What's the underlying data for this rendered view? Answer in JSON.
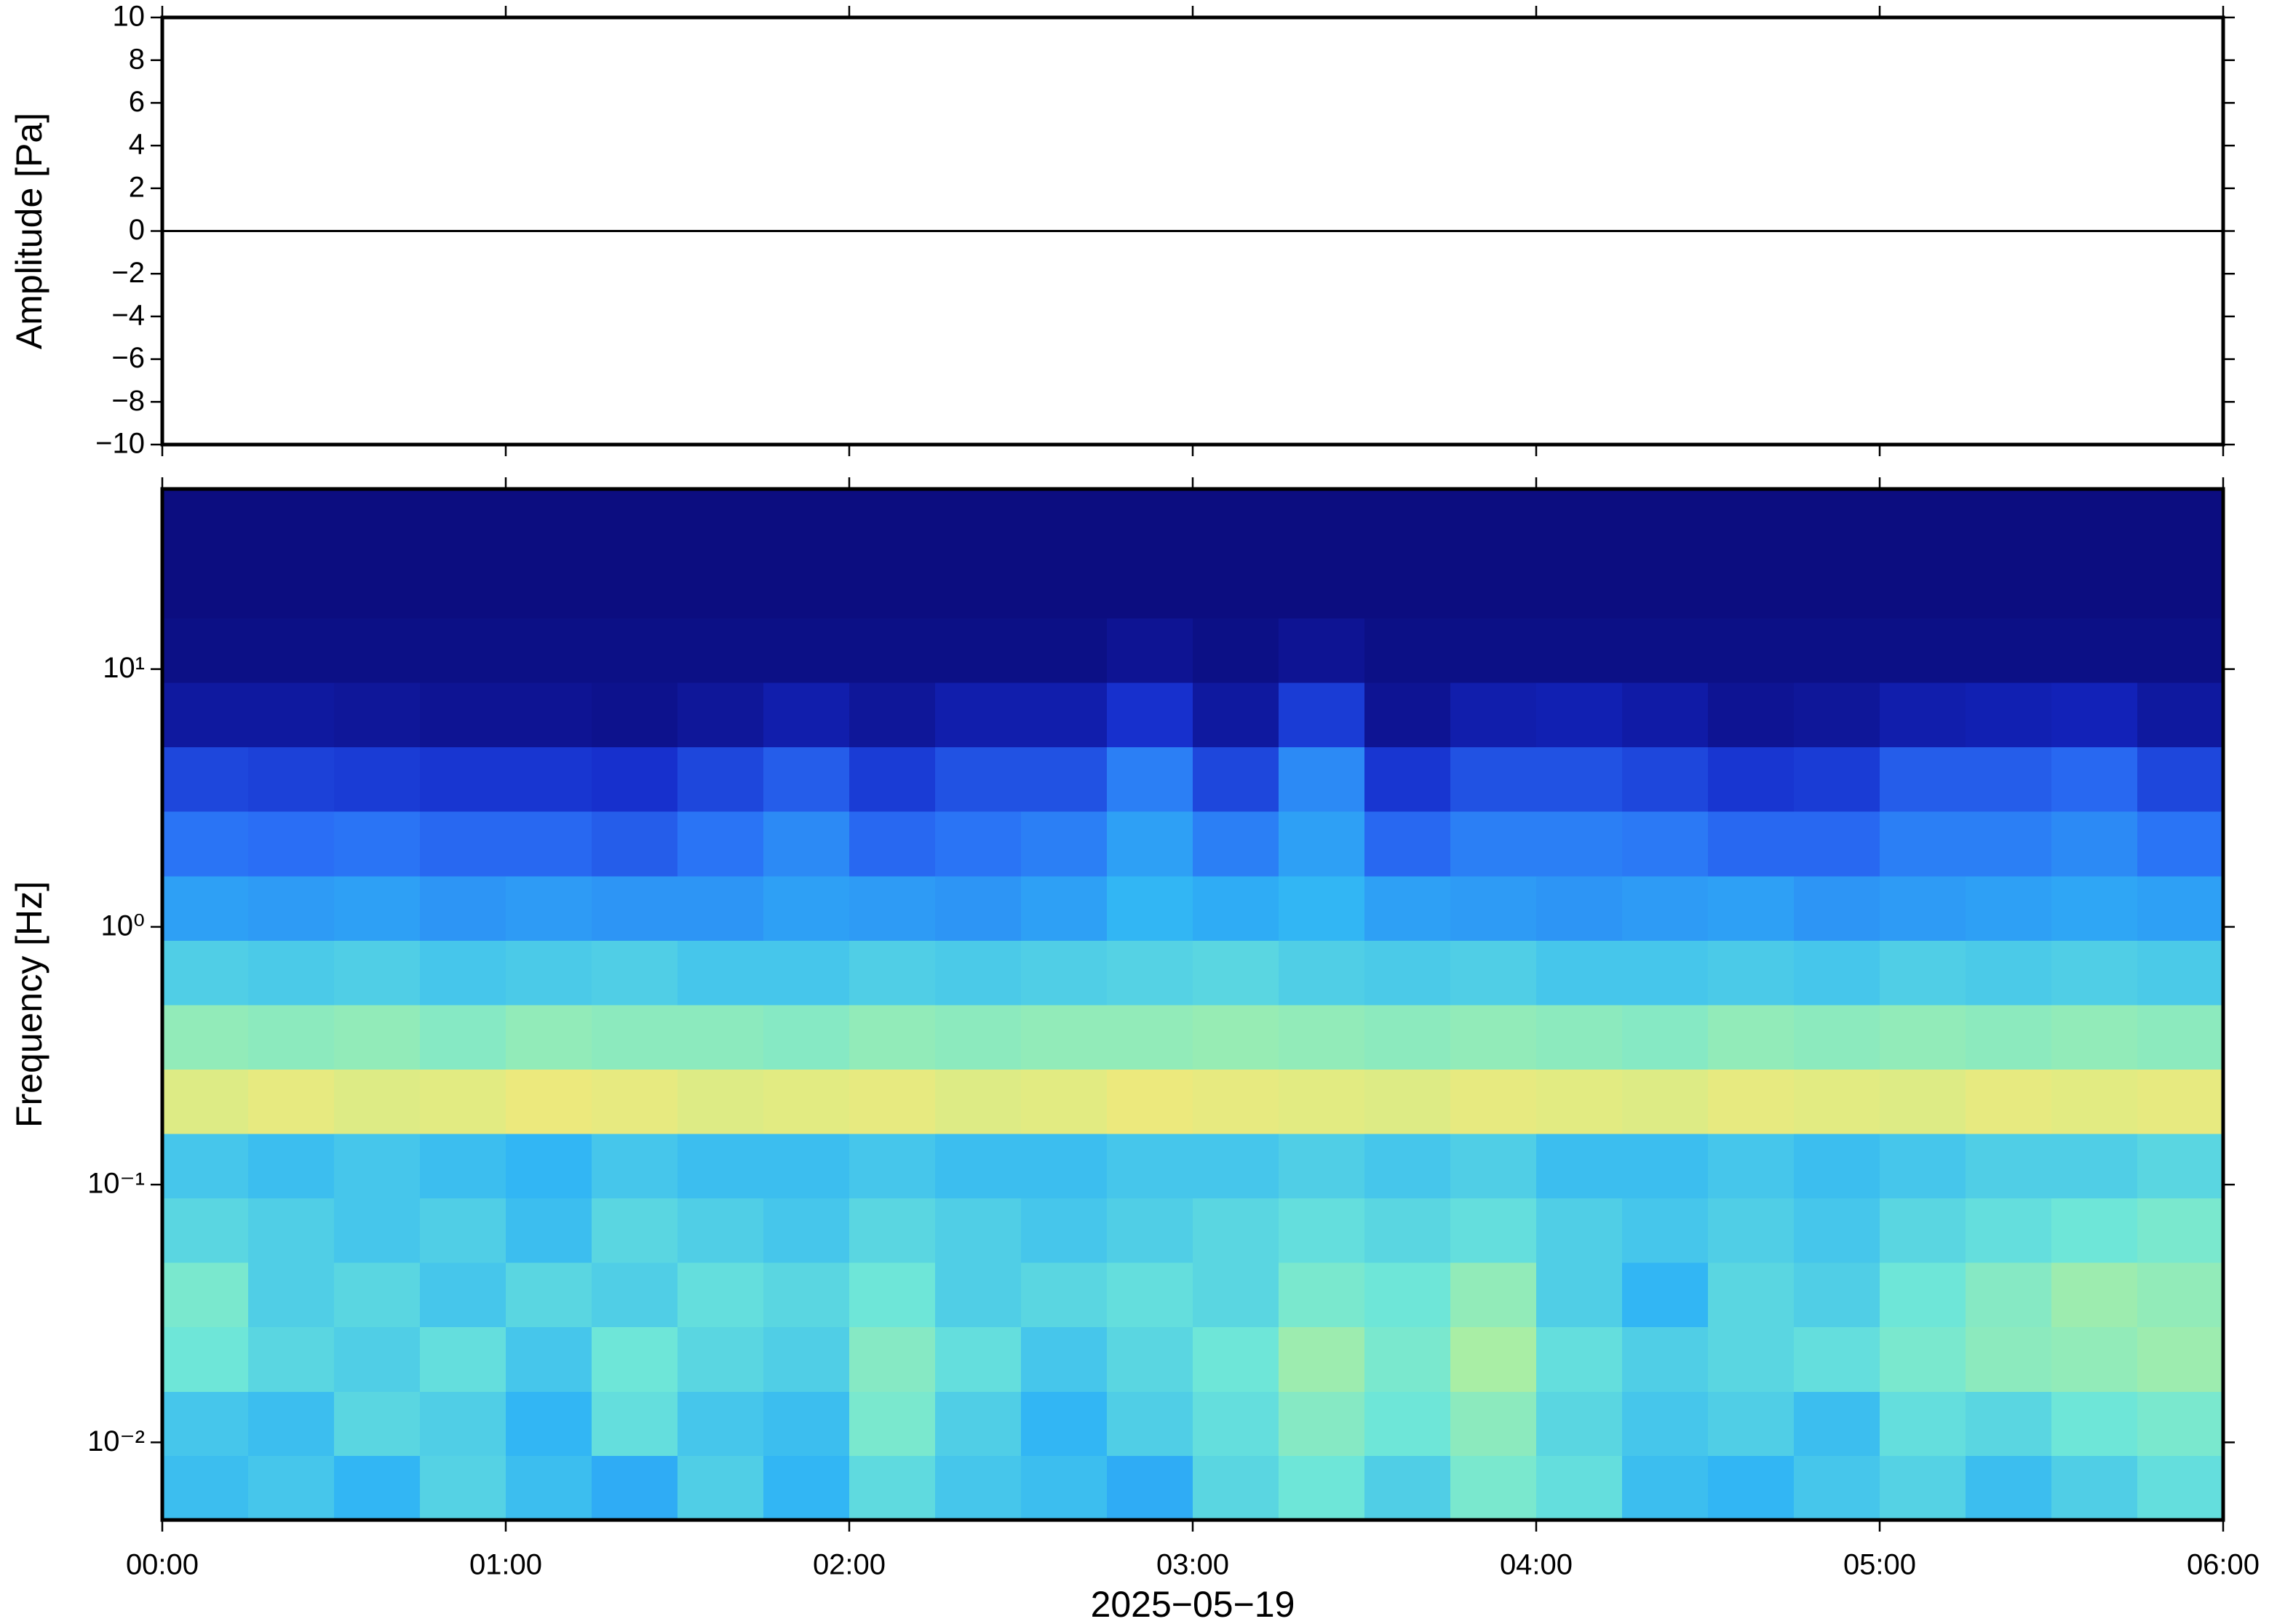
{
  "chart_data": [
    {
      "type": "line",
      "ylabel": "Amplitude [Pa]",
      "x": [
        0,
        6
      ],
      "values": [
        0,
        0
      ],
      "color": "#000000",
      "xlim": [
        0,
        6
      ],
      "xticks": [
        0,
        1,
        2,
        3,
        4,
        5,
        6
      ],
      "ylim": [
        -10,
        10
      ],
      "yticks": [
        10,
        8,
        6,
        4,
        2,
        0,
        {
          "value": -2,
          "label": "−2"
        },
        {
          "value": -4,
          "label": "−4"
        },
        {
          "value": -6,
          "label": "−6"
        },
        {
          "value": -8,
          "label": "−8"
        },
        {
          "value": -10,
          "label": "−10"
        }
      ]
    },
    {
      "type": "heatmap",
      "ylabel": "Frequency [Hz]",
      "xlabel": "2025−05−19",
      "xlim": [
        0,
        6
      ],
      "xticks": [
        {
          "value": 0,
          "label": "00:00"
        },
        {
          "value": 1,
          "label": "01:00"
        },
        {
          "value": 2,
          "label": "02:00"
        },
        {
          "value": 3,
          "label": "03:00"
        },
        {
          "value": 4,
          "label": "04:00"
        },
        {
          "value": 5,
          "label": "05:00"
        },
        {
          "value": 6,
          "label": "06:00"
        }
      ],
      "ylim": [
        0.005,
        50
      ],
      "ylog": true,
      "yticks": [
        {
          "value": 0.01,
          "label": "10⁻²"
        },
        {
          "value": 0.1,
          "label": "10⁻¹"
        },
        {
          "value": 1,
          "label": "10⁰"
        },
        {
          "value": 10,
          "label": "10¹"
        }
      ],
      "x_bins": [
        0,
        0.25,
        0.5,
        0.75,
        1,
        1.25,
        1.5,
        1.75,
        2,
        2.25,
        2.5,
        2.75,
        3,
        3.25,
        3.5,
        3.75,
        4,
        4.25,
        4.5,
        4.75,
        5,
        5.25,
        5.5,
        5.75,
        6
      ],
      "y_bins": [
        0.005,
        0.0089,
        0.0158,
        0.0281,
        0.05,
        0.0889,
        0.158,
        0.281,
        0.5,
        0.889,
        1.58,
        2.81,
        5,
        8.89,
        15.8,
        28.1,
        50
      ],
      "zlim": [
        0,
        1
      ],
      "colormap": [
        "#0b0b7a",
        "#1428c8",
        "#2a6ef5",
        "#30b4f5",
        "#6ee6d8",
        "#b8f098",
        "#f6e878",
        "#f8a048",
        "#e04020"
      ],
      "z": [
        [
          0.4,
          0.42,
          0.38,
          0.45,
          0.4,
          0.36,
          0.44,
          0.38,
          0.47,
          0.42,
          0.4,
          0.36,
          0.46,
          0.5,
          0.44,
          0.52,
          0.48,
          0.4,
          0.38,
          0.42,
          0.45,
          0.4,
          0.44,
          0.48
        ],
        [
          0.42,
          0.4,
          0.46,
          0.44,
          0.38,
          0.48,
          0.42,
          0.4,
          0.52,
          0.44,
          0.38,
          0.44,
          0.48,
          0.54,
          0.5,
          0.55,
          0.46,
          0.42,
          0.44,
          0.4,
          0.48,
          0.46,
          0.5,
          0.52
        ],
        [
          0.5,
          0.46,
          0.44,
          0.48,
          0.42,
          0.5,
          0.46,
          0.44,
          0.54,
          0.48,
          0.42,
          0.46,
          0.5,
          0.58,
          0.52,
          0.6,
          0.48,
          0.44,
          0.46,
          0.48,
          0.52,
          0.55,
          0.56,
          0.58
        ],
        [
          0.52,
          0.44,
          0.46,
          0.42,
          0.46,
          0.44,
          0.48,
          0.46,
          0.5,
          0.44,
          0.46,
          0.48,
          0.46,
          0.52,
          0.5,
          0.56,
          0.44,
          0.38,
          0.46,
          0.44,
          0.5,
          0.54,
          0.58,
          0.56
        ],
        [
          0.46,
          0.44,
          0.42,
          0.44,
          0.4,
          0.46,
          0.44,
          0.42,
          0.46,
          0.44,
          0.42,
          0.44,
          0.46,
          0.48,
          0.46,
          0.48,
          0.44,
          0.42,
          0.44,
          0.42,
          0.46,
          0.48,
          0.5,
          0.52
        ],
        [
          0.42,
          0.4,
          0.42,
          0.4,
          0.38,
          0.42,
          0.4,
          0.4,
          0.42,
          0.4,
          0.4,
          0.42,
          0.42,
          0.44,
          0.42,
          0.44,
          0.4,
          0.4,
          0.42,
          0.4,
          0.42,
          0.44,
          0.44,
          0.46
        ],
        [
          0.7,
          0.72,
          0.7,
          0.71,
          0.73,
          0.72,
          0.7,
          0.71,
          0.72,
          0.7,
          0.71,
          0.73,
          0.72,
          0.71,
          0.7,
          0.72,
          0.71,
          0.7,
          0.72,
          0.71,
          0.7,
          0.72,
          0.71,
          0.72
        ],
        [
          0.56,
          0.55,
          0.56,
          0.54,
          0.56,
          0.55,
          0.55,
          0.54,
          0.56,
          0.55,
          0.56,
          0.56,
          0.57,
          0.56,
          0.55,
          0.56,
          0.55,
          0.54,
          0.56,
          0.55,
          0.56,
          0.55,
          0.56,
          0.55
        ],
        [
          0.44,
          0.43,
          0.44,
          0.42,
          0.43,
          0.44,
          0.42,
          0.42,
          0.44,
          0.43,
          0.44,
          0.45,
          0.46,
          0.44,
          0.43,
          0.44,
          0.42,
          0.42,
          0.43,
          0.42,
          0.44,
          0.43,
          0.44,
          0.43
        ],
        [
          0.34,
          0.33,
          0.34,
          0.32,
          0.33,
          0.32,
          0.32,
          0.34,
          0.33,
          0.32,
          0.34,
          0.38,
          0.36,
          0.38,
          0.34,
          0.33,
          0.32,
          0.33,
          0.34,
          0.32,
          0.33,
          0.34,
          0.35,
          0.34
        ],
        [
          0.26,
          0.25,
          0.26,
          0.24,
          0.24,
          0.22,
          0.26,
          0.3,
          0.24,
          0.26,
          0.28,
          0.34,
          0.28,
          0.34,
          0.24,
          0.28,
          0.28,
          0.27,
          0.24,
          0.24,
          0.28,
          0.28,
          0.3,
          0.26
        ],
        [
          0.18,
          0.17,
          0.16,
          0.15,
          0.15,
          0.14,
          0.18,
          0.22,
          0.16,
          0.2,
          0.2,
          0.28,
          0.18,
          0.3,
          0.15,
          0.2,
          0.2,
          0.18,
          0.15,
          0.16,
          0.22,
          0.22,
          0.24,
          0.18
        ],
        [
          0.06,
          0.06,
          0.05,
          0.04,
          0.04,
          0.03,
          0.05,
          0.08,
          0.05,
          0.08,
          0.08,
          0.14,
          0.06,
          0.16,
          0.04,
          0.08,
          0.09,
          0.07,
          0.04,
          0.05,
          0.08,
          0.09,
          0.1,
          0.06
        ],
        [
          0.02,
          0.02,
          0.02,
          0.02,
          0.02,
          0.02,
          0.02,
          0.02,
          0.02,
          0.02,
          0.02,
          0.04,
          0.02,
          0.04,
          0.02,
          0.02,
          0.02,
          0.02,
          0.02,
          0.02,
          0.02,
          0.02,
          0.02,
          0.02
        ],
        [
          0.01,
          0.01,
          0.01,
          0.01,
          0.01,
          0.01,
          0.01,
          0.01,
          0.01,
          0.01,
          0.01,
          0.01,
          0.01,
          0.01,
          0.01,
          0.01,
          0.01,
          0.01,
          0.01,
          0.01,
          0.01,
          0.01,
          0.01,
          0.01
        ],
        [
          0.01,
          0.01,
          0.01,
          0.01,
          0.01,
          0.01,
          0.01,
          0.01,
          0.01,
          0.01,
          0.01,
          0.01,
          0.01,
          0.01,
          0.01,
          0.01,
          0.01,
          0.01,
          0.01,
          0.01,
          0.01,
          0.01,
          0.01,
          0.01
        ]
      ]
    }
  ]
}
